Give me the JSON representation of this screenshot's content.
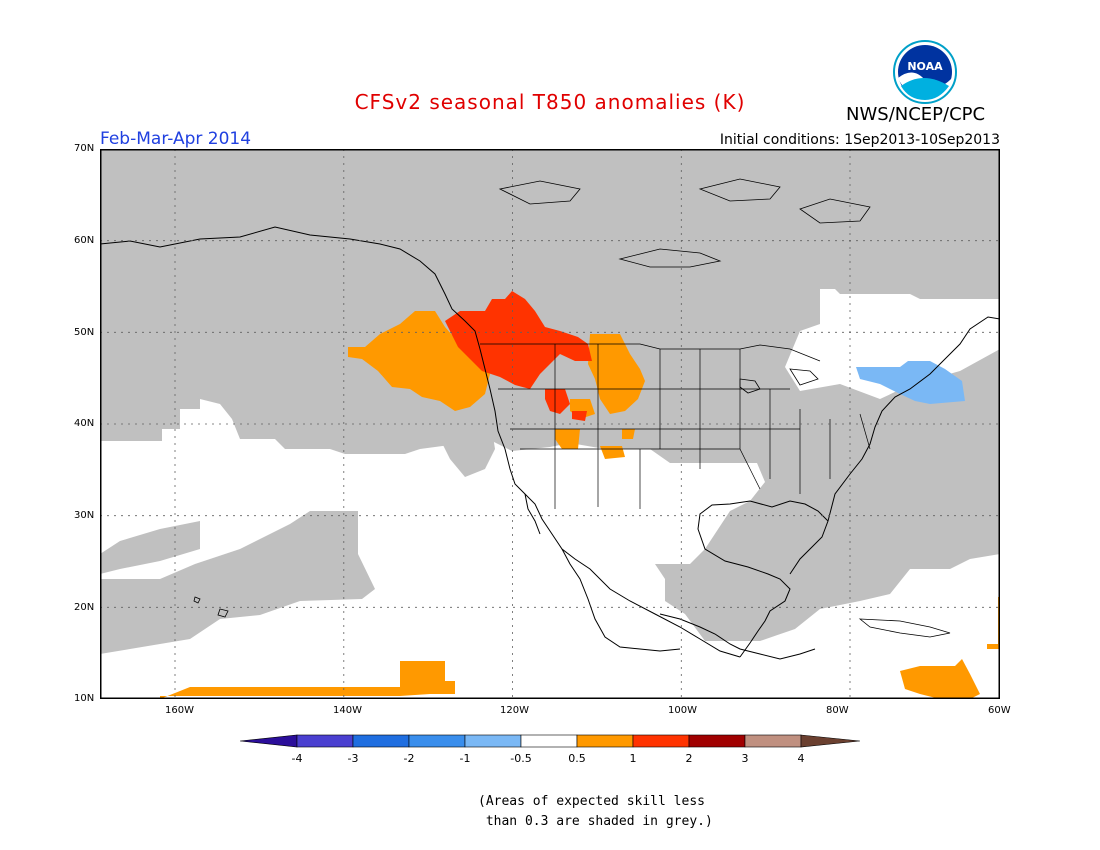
{
  "title": "CFSv2 seasonal T850 anomalies (K)",
  "period": "Feb-Mar-Apr 2014",
  "initial_conditions": "Initial conditions: 1Sep2013-10Sep2013",
  "org": "NWS/NCEP/CPC",
  "logo_text": "NOAA",
  "lat_labels": [
    "70N",
    "60N",
    "50N",
    "40N",
    "30N",
    "20N",
    "10N"
  ],
  "lon_labels": [
    "160W",
    "140W",
    "120W",
    "100W",
    "80W",
    "60W"
  ],
  "colorbar": {
    "labels": [
      "-4",
      "-3",
      "-2",
      "-1",
      "-0.5",
      "0.5",
      "1",
      "2",
      "3",
      "4"
    ],
    "colors": [
      "#2b0e9a",
      "#4a3fd0",
      "#1f6ee0",
      "#3a8eec",
      "#7ab8f5",
      "#ffffff",
      "#ff9900",
      "#ff3300",
      "#a00000",
      "#c09080",
      "#6b4030"
    ]
  },
  "note_line1": "(Areas of expected skill less",
  "note_line2": " than 0.3 are shaded in grey.)",
  "colors": {
    "grey": "#c0c0c0",
    "orange": "#ff9900",
    "red": "#ff3300",
    "lightblue": "#7ab8f5"
  }
}
